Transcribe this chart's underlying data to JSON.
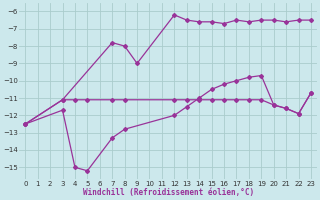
{
  "xlabel": "Windchill (Refroidissement éolien,°C)",
  "bg_color": "#cce8ec",
  "grid_color": "#aacccc",
  "line_color": "#993399",
  "line1_x": [
    0,
    3,
    7,
    8,
    9,
    12,
    13,
    14,
    15,
    16,
    17,
    18,
    19,
    20,
    21,
    22,
    23
  ],
  "line1_y": [
    -12.5,
    -11.1,
    -7.8,
    -8.0,
    -9.0,
    -6.2,
    -6.5,
    -6.6,
    -6.6,
    -6.7,
    -6.5,
    -6.6,
    -6.5,
    -6.5,
    -6.6,
    -6.5,
    -6.5
  ],
  "line2_x": [
    0,
    3,
    4,
    5,
    7,
    8,
    12,
    13,
    14,
    15,
    16,
    17,
    18,
    19,
    20,
    21,
    22,
    23
  ],
  "line2_y": [
    -12.5,
    -11.1,
    -11.1,
    -11.1,
    -11.1,
    -11.1,
    -11.1,
    -11.1,
    -11.1,
    -11.1,
    -11.1,
    -11.1,
    -11.1,
    -11.1,
    -11.4,
    -11.6,
    -11.9,
    -10.7
  ],
  "line3_x": [
    0,
    3,
    4,
    5,
    7,
    8,
    12,
    13,
    14,
    15,
    16,
    17,
    18,
    19,
    20,
    21,
    22,
    23
  ],
  "line3_y": [
    -12.5,
    -11.7,
    -15.0,
    -15.2,
    -13.3,
    -12.8,
    -12.0,
    -11.5,
    -11.0,
    -10.5,
    -10.2,
    -10.0,
    -9.8,
    -9.7,
    -11.4,
    -11.6,
    -11.9,
    -10.7
  ],
  "xlim": [
    -0.5,
    23.5
  ],
  "ylim": [
    -15.7,
    -5.5
  ],
  "yticks": [
    -6,
    -7,
    -8,
    -9,
    -10,
    -11,
    -12,
    -13,
    -14,
    -15
  ],
  "xticks": [
    0,
    1,
    2,
    3,
    4,
    5,
    6,
    7,
    8,
    9,
    10,
    11,
    12,
    13,
    14,
    15,
    16,
    17,
    18,
    19,
    20,
    21,
    22,
    23
  ]
}
